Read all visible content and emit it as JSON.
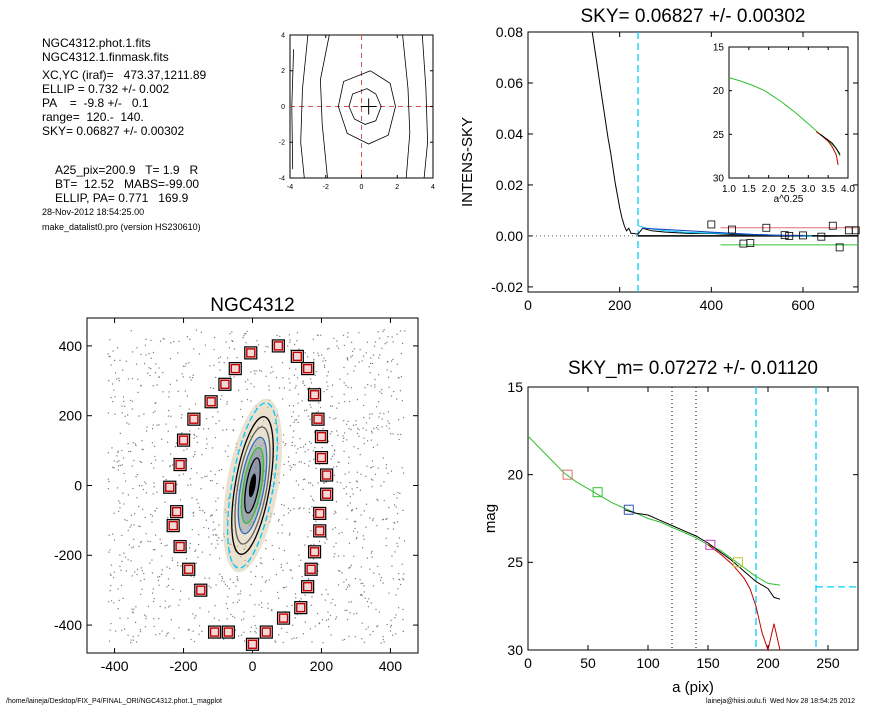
{
  "info": {
    "file1": "NGC4312.phot.1.fits",
    "file2": "NGC4312.1.finmask.fits",
    "xcyc": "XC,YC (iraf)=   473.37,1211.89",
    "ellip": "ELLIP = 0.732 +/- 0.002",
    "pa": "PA    =  -9.8 +/-   0.1",
    "range": "range=  120.-  140.",
    "sky": "SKY= 0.06827 +/- 0.00302",
    "a25": "A25_pix=200.9   T= 1.9   R",
    "bt": "BT=  12.52   MABS=-99.00",
    "ellip_pa": "ELLIP, PA= 0.771   169.9",
    "date": "28-Nov-2012 18:54:25.00",
    "program": "make_datalist0.pro (version HS230610)"
  },
  "footer": {
    "path": "/home/laineja/Desktop/FIX_P4/FINAL_ORI/NGC4312.phot.1_magplot",
    "user": "laineja@hiisi.oulu.fi  Wed Nov 28 18:54:25 2012"
  },
  "chart_data": [
    {
      "type": "contour",
      "name": "center",
      "xlim": [
        -4,
        4
      ],
      "ylim": [
        -4,
        4
      ],
      "xticks": [
        -4,
        -2,
        0,
        2,
        4
      ],
      "yticks": [
        -4,
        -2,
        0,
        2,
        4
      ],
      "xtick_labels": [
        "-4",
        "-2",
        "0",
        "2",
        "4"
      ],
      "ytick_labels": [
        "-4",
        "-2",
        "0",
        "2",
        "4"
      ],
      "cross": [
        0.4,
        0
      ],
      "contours": [
        [
          [
            0.3,
            1.0
          ],
          [
            0.8,
            0.7
          ],
          [
            1.1,
            0
          ],
          [
            0.8,
            -0.8
          ],
          [
            0.2,
            -1.0
          ],
          [
            -0.4,
            -0.7
          ],
          [
            -0.7,
            0
          ],
          [
            -0.5,
            0.7
          ],
          [
            0.3,
            1.0
          ]
        ],
        [
          [
            0.5,
            2.0
          ],
          [
            1.6,
            1.3
          ],
          [
            1.9,
            0
          ],
          [
            1.5,
            -1.6
          ],
          [
            0.4,
            -2.1
          ],
          [
            -0.8,
            -1.5
          ],
          [
            -1.3,
            0
          ],
          [
            -1.0,
            1.4
          ],
          [
            0.5,
            2.0
          ]
        ],
        [
          [
            -1.8,
            4
          ],
          [
            -2.3,
            1.5
          ],
          [
            -2.2,
            -1
          ],
          [
            -1.9,
            -4
          ]
        ],
        [
          [
            2.3,
            4
          ],
          [
            2.6,
            1
          ],
          [
            2.7,
            -1.5
          ],
          [
            2.5,
            -4
          ]
        ],
        [
          [
            -3.0,
            4
          ],
          [
            -3.3,
            1
          ],
          [
            -3.4,
            -2
          ],
          [
            -3.2,
            -4
          ]
        ],
        [
          [
            3.4,
            4
          ],
          [
            3.6,
            1
          ],
          [
            3.7,
            -2
          ],
          [
            3.5,
            -4
          ]
        ],
        [
          [
            -3.8,
            3.2
          ],
          [
            -3.9,
            0
          ],
          [
            -3.85,
            -3.5
          ]
        ]
      ]
    },
    {
      "type": "line",
      "name": "sky",
      "title": "SKY= 0.06827 +/- 0.00302",
      "ylabel": "INTENS-SKY",
      "xlim": [
        0,
        720
      ],
      "ylim": [
        -0.022,
        0.08
      ],
      "xticks": [
        0,
        200,
        400,
        600
      ],
      "yticks": [
        -0.02,
        0,
        0.02,
        0.04,
        0.06,
        0.08
      ],
      "xtick_labels": [
        "0",
        "200",
        "400",
        "600"
      ],
      "ytick_labels": [
        "-0.02",
        "0.00",
        "0.02",
        "0.04",
        "0.06",
        "0.08"
      ],
      "vline": 240,
      "series": [
        {
          "color": "#000000",
          "x": [
            140,
            145,
            150,
            155,
            160,
            165,
            170,
            175,
            180,
            185,
            190,
            195,
            200,
            205,
            210,
            215,
            220,
            225,
            230,
            235,
            240,
            250,
            270,
            300,
            350,
            400,
            450,
            500,
            550,
            600,
            650,
            700,
            720
          ],
          "y": [
            0.08,
            0.074,
            0.068,
            0.062,
            0.056,
            0.05,
            0.044,
            0.038,
            0.033,
            0.027,
            0.021,
            0.016,
            0.011,
            0.007,
            0.004,
            0.002,
            0.003,
            0.001,
            0.001,
            0.0008,
            0.0007,
            0.003,
            0.002,
            0.0015,
            0.001,
            0.001,
            0.0005,
            0.0005,
            0.0002,
            0.0002,
            -0.0001,
            0.0,
            0.0
          ]
        },
        {
          "color": "#00c8ff",
          "x": [
            240,
            260,
            280,
            300,
            340,
            380,
            420,
            460,
            500,
            540,
            580,
            620
          ],
          "y": [
            0.004,
            0.003,
            0.0025,
            0.002,
            0.0015,
            0.0012,
            0.001,
            0.0008,
            0.0005,
            0.0003,
            0.0001,
            0.0
          ]
        },
        {
          "color": "#1040c0",
          "x": [
            250,
            300,
            350,
            400,
            450,
            500,
            550,
            600
          ],
          "y": [
            0.003,
            0.0025,
            0.002,
            0.0015,
            0.001,
            0.0005,
            0.0002,
            0.0
          ]
        }
      ],
      "hlines": [
        {
          "color": "#e07070",
          "x": [
            420,
            720
          ],
          "y": 0.0032
        },
        {
          "color": "#30c030",
          "x": [
            420,
            720
          ],
          "y": -0.0035
        },
        {
          "color": "#000000",
          "x": [
            240,
            720
          ],
          "y": 0.0
        }
      ],
      "squares": {
        "x": [
          400,
          445,
          470,
          485,
          520,
          560,
          570,
          600,
          640,
          665,
          680,
          700,
          715
        ],
        "y": [
          0.0045,
          0.0025,
          -0.003,
          -0.0028,
          0.0032,
          0.0003,
          0.0,
          0.0002,
          -0.0003,
          0.004,
          -0.0045,
          0.0022,
          0.0022
        ]
      }
    },
    {
      "type": "line",
      "name": "inset",
      "xlabel": "a^0.25",
      "xlim": [
        1.0,
        4.0
      ],
      "ylim": [
        15,
        30
      ],
      "xticks": [
        1.0,
        1.5,
        2.0,
        2.5,
        3.0,
        3.5,
        4.0
      ],
      "yticks": [
        15,
        20,
        25,
        30
      ],
      "xtick_labels": [
        "1.0",
        "1.5",
        "2.0",
        "2.5",
        "3.0",
        "3.5",
        "4.0"
      ],
      "ytick_labels": [
        "15",
        "20",
        "25",
        "30"
      ],
      "series": [
        {
          "color": "#30c030",
          "x": [
            1.0,
            1.3,
            1.6,
            1.9,
            2.1,
            2.3,
            2.5,
            2.7,
            2.9,
            3.1,
            3.3,
            3.5,
            3.7,
            3.8
          ],
          "y": [
            18.5,
            18.9,
            19.4,
            20.0,
            20.6,
            21.2,
            21.9,
            22.6,
            23.4,
            24.2,
            25.0,
            25.7,
            26.6,
            27.5
          ]
        },
        {
          "color": "#c00000",
          "x": [
            3.2,
            3.35,
            3.5,
            3.6,
            3.7,
            3.75
          ],
          "y": [
            24.7,
            25.2,
            25.8,
            26.4,
            27.3,
            28.5
          ]
        },
        {
          "color": "#000000",
          "x": [
            3.3,
            3.45,
            3.6,
            3.7,
            3.8
          ],
          "y": [
            25.0,
            25.5,
            26.0,
            26.6,
            27.3
          ]
        }
      ]
    },
    {
      "type": "line",
      "name": "sky_m",
      "title": "SKY_m=  0.07272 +/- 0.01120",
      "xlabel": "a (pix)",
      "ylabel": "mag",
      "xlim": [
        0,
        275
      ],
      "ylim": [
        15,
        30
      ],
      "xticks": [
        0,
        50,
        100,
        150,
        200,
        250
      ],
      "yticks": [
        15,
        20,
        25,
        30
      ],
      "xtick_labels": [
        "0",
        "50",
        "100",
        "150",
        "200",
        "250"
      ],
      "ytick_labels": [
        "15",
        "20",
        "25",
        "30"
      ],
      "vlines_dotted": [
        120,
        140
      ],
      "vline_dashed": [
        190,
        240
      ],
      "hline_dashed": {
        "x": [
          240,
          275
        ],
        "y": 26.4
      },
      "series": [
        {
          "color": "#30c030",
          "x": [
            0,
            10,
            20,
            30,
            40,
            50,
            60,
            70,
            80,
            90,
            100,
            110,
            120,
            130,
            140,
            150,
            160,
            170,
            180,
            190,
            200,
            210
          ],
          "y": [
            17.8,
            18.5,
            19.2,
            19.9,
            20.4,
            20.8,
            21.2,
            21.6,
            21.9,
            22.2,
            22.5,
            22.7,
            23.0,
            23.3,
            23.6,
            24.0,
            24.3,
            24.8,
            25.3,
            25.8,
            26.2,
            26.3
          ]
        },
        {
          "color": "#000000",
          "x": [
            80,
            90,
            100,
            110,
            120,
            130,
            140,
            150,
            160,
            170,
            180,
            190,
            200,
            205,
            210
          ],
          "y": [
            22.0,
            22.2,
            22.3,
            22.6,
            22.9,
            23.2,
            23.5,
            23.9,
            24.4,
            24.9,
            25.5,
            26.1,
            26.5,
            27.0,
            27.1
          ]
        },
        {
          "color": "#c00000",
          "x": [
            150,
            160,
            170,
            180,
            185,
            190,
            195,
            200,
            205,
            210
          ],
          "y": [
            24.0,
            24.5,
            25.1,
            25.9,
            26.5,
            27.5,
            29.0,
            30.0,
            28.5,
            30.0
          ]
        }
      ],
      "squares": [
        {
          "x": 33,
          "y": 20.0,
          "color": "#e07070"
        },
        {
          "x": 58,
          "y": 21.0,
          "color": "#30c030"
        },
        {
          "x": 84,
          "y": 22.0,
          "color": "#3050c0"
        },
        {
          "x": 152,
          "y": 24.0,
          "color": "#c040c0"
        },
        {
          "x": 175,
          "y": 25.0,
          "color": "#c8c830"
        }
      ]
    },
    {
      "type": "scatter",
      "name": "galaxy",
      "title": "NGC4312",
      "xlim": [
        -480,
        480
      ],
      "ylim": [
        -480,
        480
      ],
      "xticks": [
        -400,
        -200,
        0,
        200,
        400
      ],
      "yticks": [
        -400,
        -200,
        0,
        200,
        400
      ],
      "xtick_labels": [
        "-400",
        "-200",
        "0",
        "200",
        "400"
      ],
      "ytick_labels": [
        "-400",
        "-200",
        "0",
        "200",
        "400"
      ],
      "ellipses": [
        {
          "a": 240,
          "b": 60,
          "pa": -9.8,
          "color": "#00c8ff"
        },
        {
          "a": 200,
          "b": 50,
          "pa": -9.8,
          "color": "#000000"
        },
        {
          "a": 170,
          "b": 42,
          "pa": -9.8,
          "color": "#606060"
        },
        {
          "a": 140,
          "b": 34,
          "pa": -9.8,
          "color": "#3070c0"
        },
        {
          "a": 110,
          "b": 26,
          "pa": -9.8,
          "color": "#30c030"
        },
        {
          "a": 80,
          "b": 18,
          "pa": -9.8,
          "color": "#000000"
        }
      ],
      "sky_boxes": {
        "x": [
          -5,
          75,
          130,
          160,
          180,
          190,
          200,
          200,
          215,
          215,
          195,
          195,
          180,
          170,
          160,
          140,
          90,
          40,
          0,
          -70,
          -110,
          -150,
          -185,
          -210,
          -230,
          -220,
          -240,
          -210,
          -200,
          -170,
          -120,
          -80,
          -50
        ],
        "y": [
          380,
          400,
          370,
          335,
          260,
          190,
          140,
          80,
          30,
          -25,
          -80,
          -130,
          -190,
          -240,
          -290,
          -350,
          -380,
          -420,
          -455,
          -420,
          -420,
          -300,
          -240,
          -175,
          -115,
          -75,
          -5,
          60,
          130,
          190,
          240,
          290,
          335
        ]
      }
    }
  ]
}
